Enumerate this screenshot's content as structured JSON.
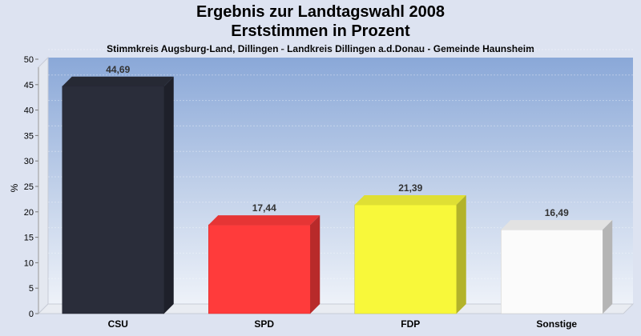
{
  "chart_data": {
    "type": "bar",
    "title": "Ergebnis zur Landtagswahl 2008",
    "title_line2": "Erststimmen in Prozent",
    "subtitle": "Stimmkreis Augsburg-Land, Dillingen - Landkreis Dillingen a.d.Donau - Gemeinde Haunsheim",
    "ylabel": "%",
    "ylim": [
      0,
      50
    ],
    "yticks": [
      0,
      5,
      10,
      15,
      20,
      25,
      30,
      35,
      40,
      45,
      50
    ],
    "categories": [
      "CSU",
      "SPD",
      "FDP",
      "Sonstige"
    ],
    "values": [
      44.69,
      17.44,
      21.39,
      16.49
    ],
    "value_labels": [
      "44,69",
      "17,44",
      "21,39",
      "16,49"
    ],
    "colors": [
      "#2a2d3a",
      "#ff3b3b",
      "#f8f83a",
      "#fbfbfb"
    ],
    "grid": true
  }
}
